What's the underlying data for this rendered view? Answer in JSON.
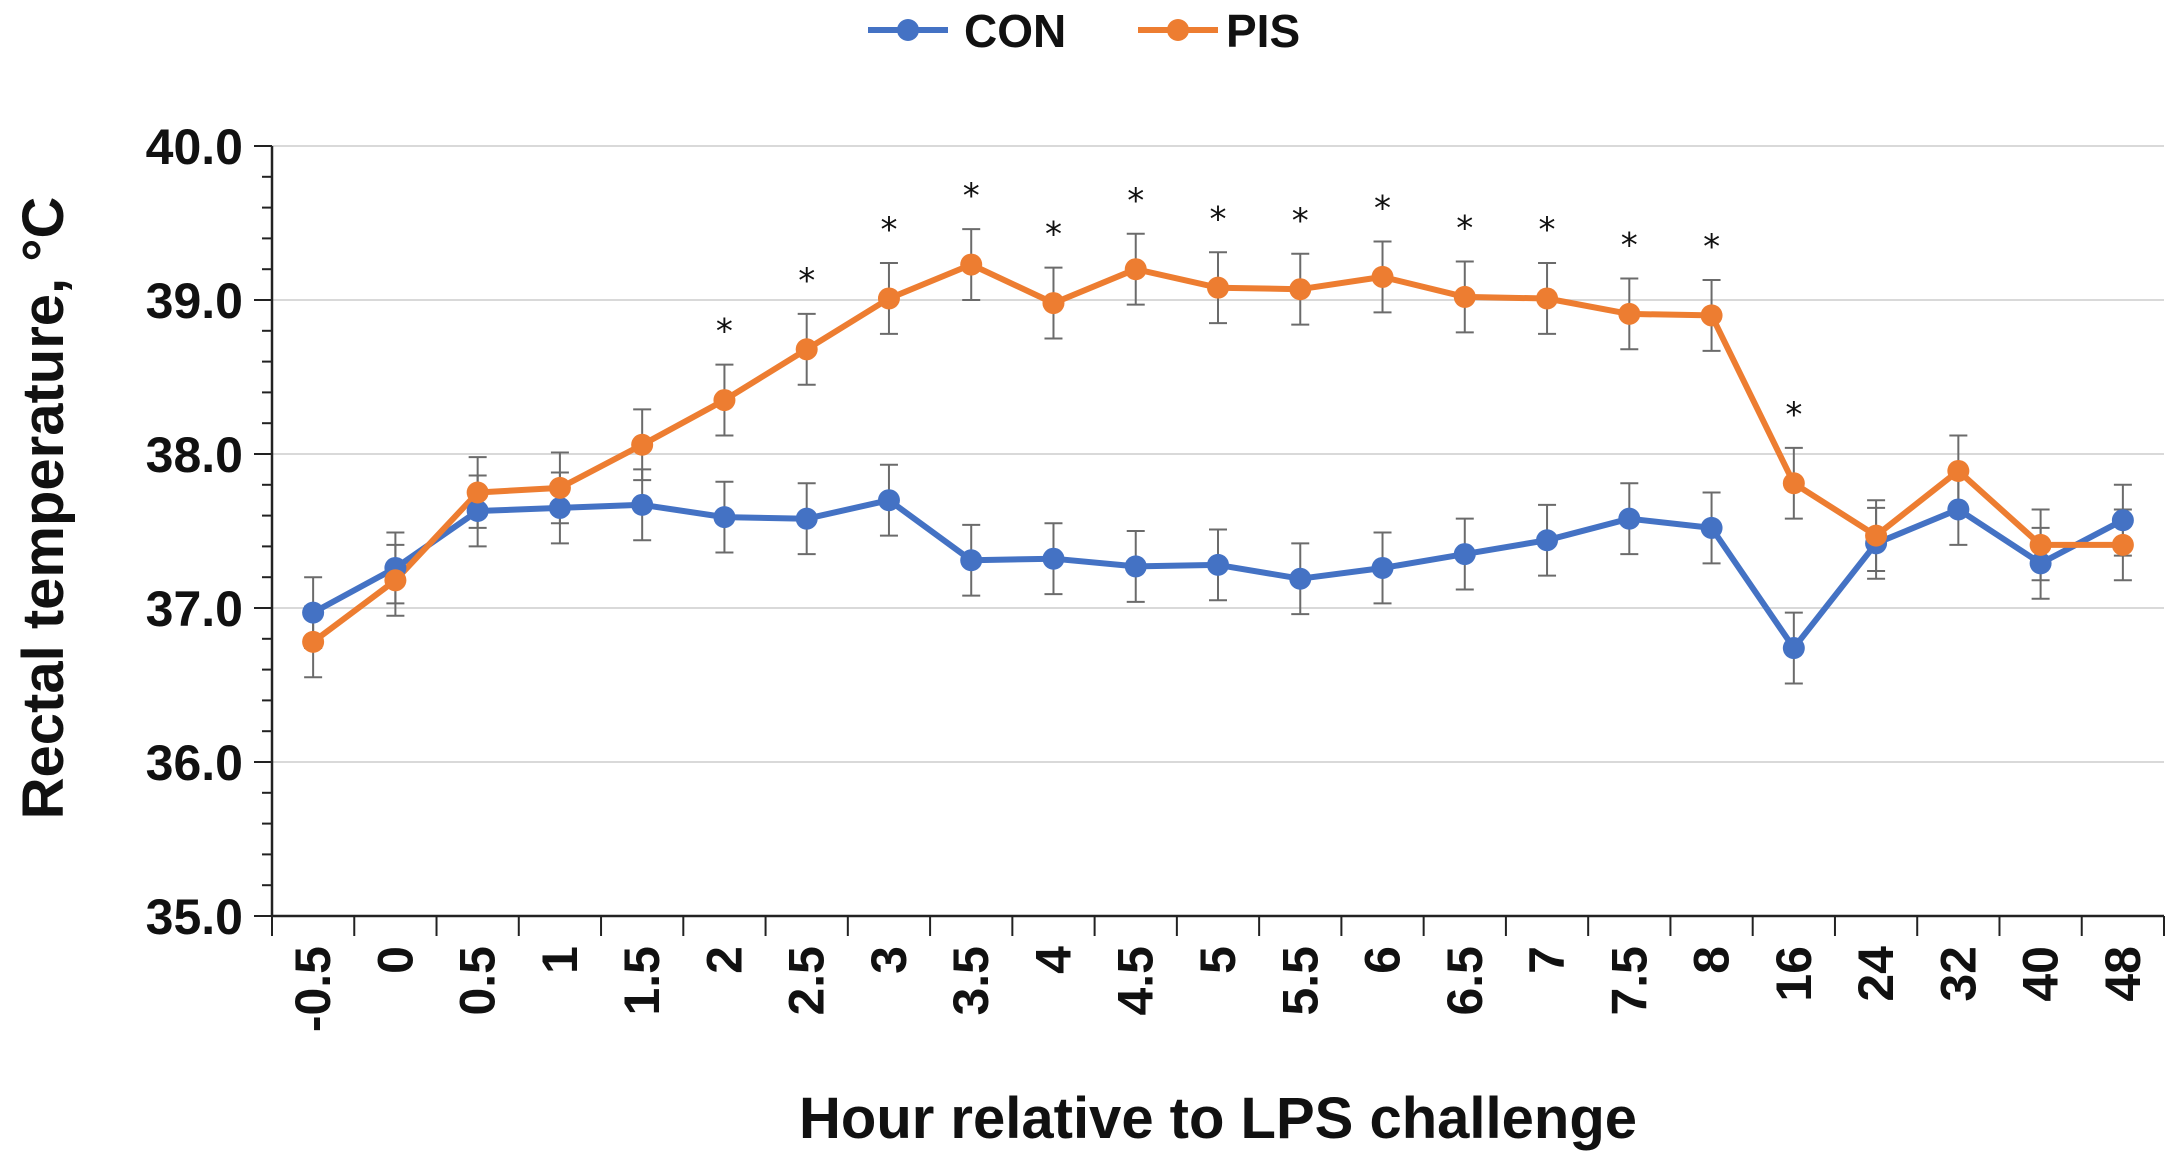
{
  "chart_data": {
    "type": "line",
    "title": "",
    "xlabel": "Hour relative to LPS challenge",
    "ylabel": "Rectal temperature, °C",
    "ylim": [
      35.0,
      40.0
    ],
    "yticks": [
      35.0,
      36.0,
      37.0,
      38.0,
      39.0,
      40.0
    ],
    "ytick_labels": [
      "35.0",
      "36.0",
      "37.0",
      "38.0",
      "39.0",
      "40.0"
    ],
    "grid": true,
    "legend_position": "top-center",
    "categories": [
      "-0.5",
      "0",
      "0.5",
      "1",
      "1.5",
      "2",
      "2.5",
      "3",
      "3.5",
      "4",
      "4.5",
      "5",
      "5.5",
      "6",
      "6.5",
      "7",
      "7.5",
      "8",
      "16",
      "24",
      "32",
      "40",
      "48"
    ],
    "series": [
      {
        "name": "CON",
        "color": "#4472C4",
        "values": [
          36.97,
          37.26,
          37.63,
          37.65,
          37.67,
          37.59,
          37.58,
          37.7,
          37.31,
          37.32,
          37.27,
          37.28,
          37.19,
          37.26,
          37.35,
          37.44,
          37.58,
          37.52,
          36.74,
          37.42,
          37.64,
          37.29,
          37.57
        ],
        "errors": [
          0.23,
          0.23,
          0.23,
          0.23,
          0.23,
          0.23,
          0.23,
          0.23,
          0.23,
          0.23,
          0.23,
          0.23,
          0.23,
          0.23,
          0.23,
          0.23,
          0.23,
          0.23,
          0.23,
          0.23,
          0.23,
          0.23,
          0.23
        ]
      },
      {
        "name": "PIS",
        "color": "#ED7D31",
        "values": [
          36.78,
          37.18,
          37.75,
          37.78,
          38.06,
          38.35,
          38.68,
          39.01,
          39.23,
          38.98,
          39.2,
          39.08,
          39.07,
          39.15,
          39.02,
          39.01,
          38.91,
          38.9,
          37.81,
          37.47,
          37.89,
          37.41,
          37.41
        ],
        "errors": [
          0.23,
          0.23,
          0.23,
          0.23,
          0.23,
          0.23,
          0.23,
          0.23,
          0.23,
          0.23,
          0.23,
          0.23,
          0.23,
          0.23,
          0.23,
          0.23,
          0.23,
          0.23,
          0.23,
          0.23,
          0.23,
          0.23,
          0.23
        ]
      }
    ],
    "significance_marker": "*",
    "significance_at": [
      "2",
      "2.5",
      "3",
      "3.5",
      "4",
      "4.5",
      "5",
      "5.5",
      "6",
      "6.5",
      "7",
      "7.5",
      "8",
      "16"
    ]
  }
}
